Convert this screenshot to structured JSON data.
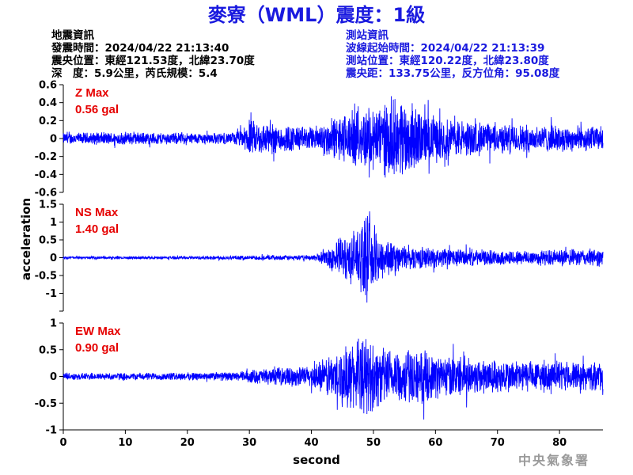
{
  "header": {
    "title": "麥寮（WML）震度：1級",
    "left_info": [
      "地震資訊",
      "發震時間：2024/04/22 21:13:40",
      "震央位置：東經121.53度，北緯23.70度",
      "深　度：5.9公里，芮氏規模：5.4"
    ],
    "right_info": [
      "測站資訊",
      "波線起始時間：2024/04/22 21:13:39",
      "測站位置：東經120.22度，北緯23.80度",
      "震央距：133.75公里，反方位角：95.08度"
    ]
  },
  "colors": {
    "trace": "#0000ff",
    "title": "#1a1adf",
    "info_left": "#000000",
    "info_right": "#1a1adf",
    "max_label": "#e60000",
    "logo": "#9a9a9a"
  },
  "footer": {
    "logo_text": "中央氣象署"
  },
  "chart_data": {
    "type": "line",
    "xlabel": "second",
    "ylabel": "acceleration",
    "xlim": [
      0,
      87
    ],
    "xticks": [
      0,
      10,
      20,
      30,
      40,
      50,
      60,
      70,
      80
    ],
    "panels": [
      {
        "name": "Z",
        "max_label": "Z Max",
        "max_value": "0.56 gal",
        "ylim": [
          -0.6,
          0.6
        ],
        "yticks": [
          -0.6,
          -0.4,
          -0.2,
          0,
          0.2,
          0.4,
          0.6
        ],
        "ytick_labels": [
          "-0.6",
          "-0.4",
          "-0.2",
          "0",
          "0.2",
          "0.4",
          "0.6"
        ],
        "envelope": [
          [
            0,
            0.07
          ],
          [
            10,
            0.08
          ],
          [
            20,
            0.07
          ],
          [
            27,
            0.07
          ],
          [
            29,
            0.12
          ],
          [
            30,
            0.22
          ],
          [
            35,
            0.18
          ],
          [
            40,
            0.14
          ],
          [
            42,
            0.2
          ],
          [
            45,
            0.3
          ],
          [
            48,
            0.35
          ],
          [
            52,
            0.45
          ],
          [
            55,
            0.5
          ],
          [
            58,
            0.32
          ],
          [
            62,
            0.25
          ],
          [
            70,
            0.18
          ],
          [
            80,
            0.16
          ],
          [
            87,
            0.15
          ]
        ]
      },
      {
        "name": "NS",
        "max_label": "NS Max",
        "max_value": "1.40 gal",
        "ylim": [
          -1.5,
          1.5
        ],
        "yticks": [
          -1.5,
          -1,
          -0.5,
          0,
          0.5,
          1,
          1.5
        ],
        "ytick_labels": [
          "",
          "-1",
          "-0.5",
          "0",
          "0.5",
          "1",
          "1.5"
        ],
        "envelope": [
          [
            0,
            0.04
          ],
          [
            20,
            0.05
          ],
          [
            30,
            0.07
          ],
          [
            40,
            0.08
          ],
          [
            42,
            0.2
          ],
          [
            44,
            0.55
          ],
          [
            47,
            0.85
          ],
          [
            49,
            1.3
          ],
          [
            51,
            0.75
          ],
          [
            54,
            0.4
          ],
          [
            60,
            0.3
          ],
          [
            70,
            0.22
          ],
          [
            80,
            0.25
          ],
          [
            87,
            0.28
          ]
        ]
      },
      {
        "name": "EW",
        "max_label": "EW Max",
        "max_value": "0.90 gal",
        "ylim": [
          -1,
          1
        ],
        "yticks": [
          -1,
          -0.5,
          0,
          0.5,
          1
        ],
        "ytick_labels": [
          "-1",
          "-0.5",
          "0",
          "0.5",
          "1"
        ],
        "envelope": [
          [
            0,
            0.07
          ],
          [
            20,
            0.08
          ],
          [
            28,
            0.09
          ],
          [
            30,
            0.14
          ],
          [
            35,
            0.18
          ],
          [
            40,
            0.22
          ],
          [
            43,
            0.45
          ],
          [
            46,
            0.65
          ],
          [
            49,
            0.8
          ],
          [
            52,
            0.55
          ],
          [
            55,
            0.6
          ],
          [
            60,
            0.45
          ],
          [
            70,
            0.35
          ],
          [
            80,
            0.3
          ],
          [
            87,
            0.28
          ]
        ]
      }
    ]
  }
}
